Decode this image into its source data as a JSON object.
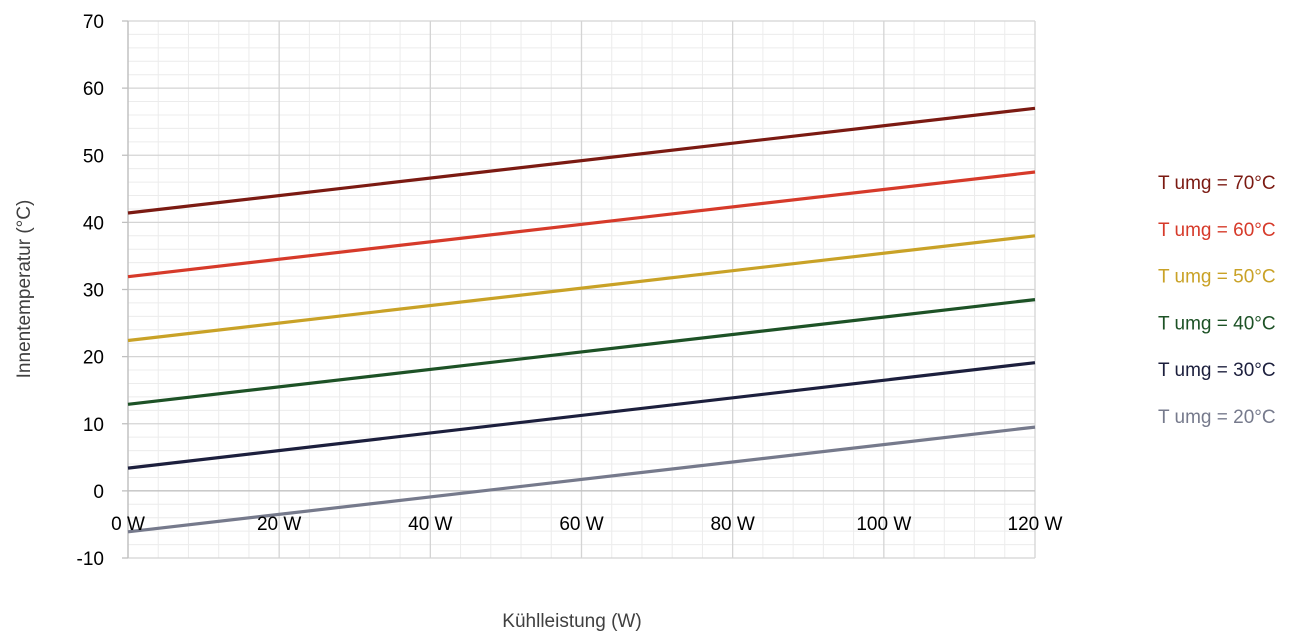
{
  "chart_data": {
    "type": "line",
    "xlabel": "Kühlleistung (W)",
    "ylabel": "Innentemperatur (°C)",
    "xlim": [
      0,
      120
    ],
    "ylim": [
      -10,
      70
    ],
    "x_ticks": [
      0,
      20,
      40,
      60,
      80,
      100,
      120
    ],
    "x_tick_labels": [
      "0 W",
      "20 W",
      "40 W",
      "60 W",
      "80 W",
      "100 W",
      "120 W"
    ],
    "y_ticks": [
      70,
      60,
      50,
      40,
      30,
      20,
      10,
      0,
      -10
    ],
    "y_tick_labels": [
      "70",
      "60",
      "50",
      "40",
      "30",
      "20",
      "10",
      "0",
      "-10"
    ],
    "grid": true,
    "legend_position": "right",
    "series": [
      {
        "name": "T umg = 70°C",
        "color": "#7b1a12",
        "x": [
          0,
          120
        ],
        "y": [
          41.4,
          57.0
        ]
      },
      {
        "name": "T umg = 60°C",
        "color": "#d63a2a",
        "x": [
          0,
          120
        ],
        "y": [
          31.9,
          47.5
        ]
      },
      {
        "name": "T umg = 50°C",
        "color": "#c9a227",
        "x": [
          0,
          120
        ],
        "y": [
          22.4,
          38.0
        ]
      },
      {
        "name": "T umg = 40°C",
        "color": "#1d5226",
        "x": [
          0,
          120
        ],
        "y": [
          12.9,
          28.5
        ]
      },
      {
        "name": "T umg = 30°C",
        "color": "#1c1f3d",
        "x": [
          0,
          120
        ],
        "y": [
          3.4,
          19.1
        ]
      },
      {
        "name": "T umg = 20°C",
        "color": "#767a8c",
        "x": [
          0,
          120
        ],
        "y": [
          -6.1,
          9.5
        ]
      }
    ]
  }
}
